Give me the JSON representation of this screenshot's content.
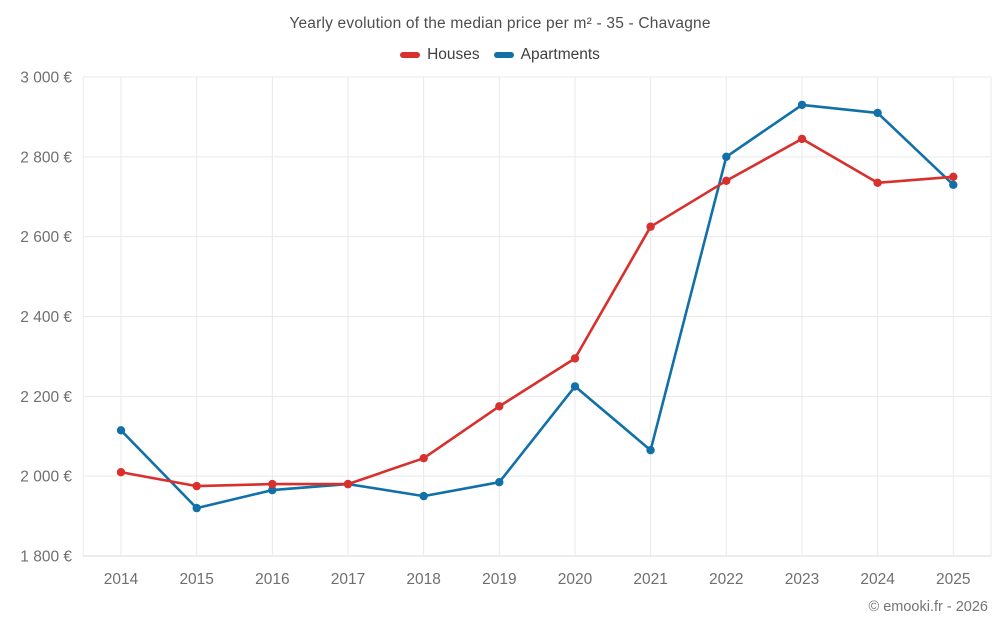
{
  "chart_data": {
    "type": "line",
    "title": "Yearly evolution of the median price per m² - 35 - Chavagne",
    "xlabel": "",
    "ylabel": "",
    "categories": [
      "2014",
      "2015",
      "2016",
      "2017",
      "2018",
      "2019",
      "2020",
      "2021",
      "2022",
      "2023",
      "2024",
      "2025"
    ],
    "series": [
      {
        "name": "Houses",
        "color": "#d7302d",
        "values": [
          2010,
          1975,
          1980,
          1980,
          2045,
          2175,
          2295,
          2625,
          2740,
          2845,
          2735,
          2750
        ]
      },
      {
        "name": "Apartments",
        "color": "#1170a8",
        "values": [
          2115,
          1920,
          1965,
          1980,
          1950,
          1985,
          2225,
          2065,
          2800,
          2930,
          2910,
          2730
        ]
      }
    ],
    "ylim": [
      1800,
      3000
    ],
    "ytick_step": 200,
    "ytick_suffix": " €",
    "grid": true,
    "legend_position": "top"
  },
  "footer": {
    "credit": "© emooki.fr - 2026"
  }
}
